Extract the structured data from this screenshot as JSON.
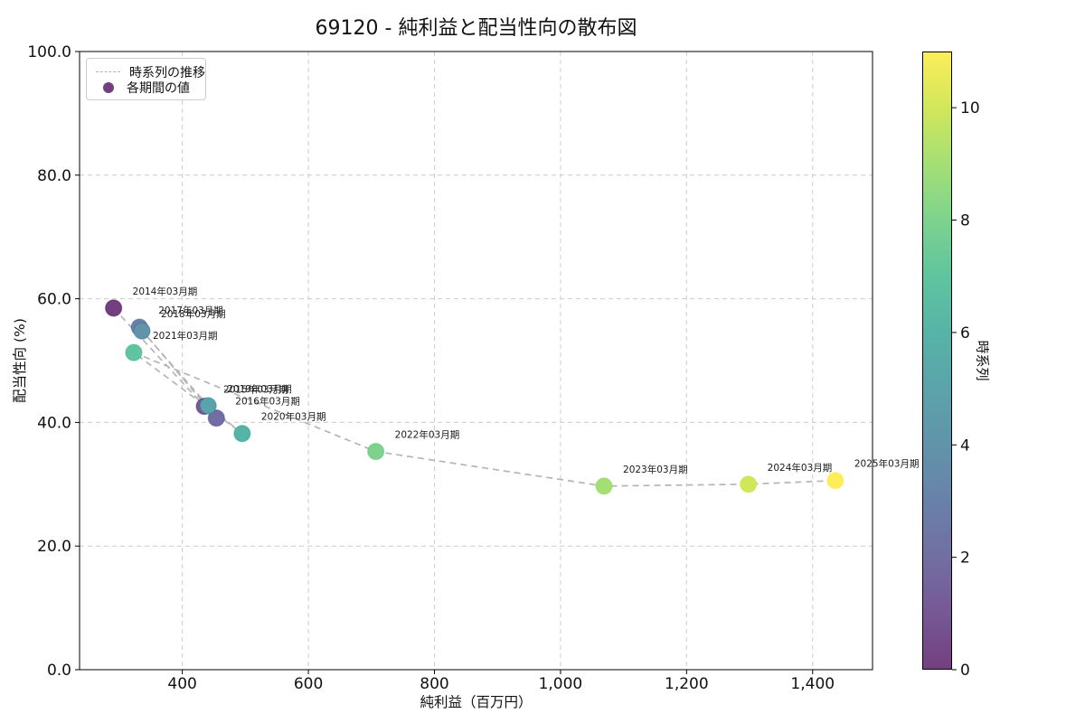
{
  "title": "69120 - 純利益と配当性向の散布図",
  "axes": {
    "xlabel": "純利益（百万円）",
    "ylabel": "配当性向 (%)",
    "x_tick_values": [
      400,
      600,
      800,
      1000,
      1200,
      1400
    ],
    "x_tick_labels": [
      "400",
      "600",
      "800",
      "1,000",
      "1,200",
      "1,400"
    ],
    "y_tick_values": [
      0,
      20,
      40,
      60,
      80,
      100
    ],
    "y_tick_labels": [
      "0.0",
      "20.0",
      "40.0",
      "60.0",
      "80.0",
      "100.0"
    ],
    "grid_color": "#cccccc",
    "spine_color": "#000000"
  },
  "legend": {
    "line_label": "時系列の推移",
    "marker_label": "各期間の値",
    "marker_color": "#73407f",
    "line_color": "#b3b3b3"
  },
  "colorbar": {
    "label": "時系列",
    "vmin": 0,
    "vmax": 11,
    "tick_values": [
      0,
      2,
      4,
      6,
      8,
      10
    ],
    "tick_labels": [
      "0",
      "2",
      "4",
      "6",
      "8",
      "10"
    ],
    "gradient_bottom_to_top": [
      "#73407f",
      "#765896",
      "#726ea3",
      "#6981a9",
      "#6194aa",
      "#5ba3aa",
      "#56b4a7",
      "#5fc49f",
      "#7dd38e",
      "#a4df76",
      "#d1e75a",
      "#fded5b"
    ]
  },
  "chart_data": {
    "type": "scatter",
    "title": "69120 - 純利益と配当性向の散布図",
    "xlabel": "純利益（百万円）",
    "ylabel": "配当性向 (%)",
    "xlim": [
      237,
      1495
    ],
    "ylim": [
      0,
      100
    ],
    "grid": true,
    "legend_position": "upper left",
    "line_style": "dashed",
    "line_color": "#b5b5b5",
    "marker_radius": 9,
    "points": [
      {
        "label": "2014年03月期",
        "t": 0,
        "x": 291,
        "y": 58.5,
        "fill": "#73407f",
        "edge": "#440154"
      },
      {
        "label": "2015年03月期",
        "t": 1,
        "x": 435,
        "y": 42.6,
        "fill": "#765896",
        "edge": "#482173"
      },
      {
        "label": "2016年03月期",
        "t": 2,
        "x": 454,
        "y": 40.7,
        "fill": "#726ea3",
        "edge": "#433e85"
      },
      {
        "label": "2017年03月期",
        "t": 3,
        "x": 332,
        "y": 55.4,
        "fill": "#6981a9",
        "edge": "#38578c"
      },
      {
        "label": "2018年03月期",
        "t": 4,
        "x": 336,
        "y": 54.8,
        "fill": "#6194aa",
        "edge": "#2d708e"
      },
      {
        "label": "2019年03月期",
        "t": 5,
        "x": 441,
        "y": 42.7,
        "fill": "#5ba3aa",
        "edge": "#25858e"
      },
      {
        "label": "2020年03月期",
        "t": 6,
        "x": 495,
        "y": 38.2,
        "fill": "#56b4a7",
        "edge": "#1e9b8a"
      },
      {
        "label": "2021年03月期",
        "t": 7,
        "x": 323,
        "y": 51.3,
        "fill": "#5fc49f",
        "edge": "#2ab07f"
      },
      {
        "label": "2022年03月期",
        "t": 8,
        "x": 707,
        "y": 35.3,
        "fill": "#7dd38e",
        "edge": "#52c569"
      },
      {
        "label": "2023年03月期",
        "t": 9,
        "x": 1069,
        "y": 29.7,
        "fill": "#a4df76",
        "edge": "#86d549"
      },
      {
        "label": "2024年03月期",
        "t": 10,
        "x": 1298,
        "y": 30.0,
        "fill": "#d1e75a",
        "edge": "#c2df23"
      },
      {
        "label": "2025年03月期",
        "t": 11,
        "x": 1436,
        "y": 30.6,
        "fill": "#fded5b",
        "edge": "#fde725"
      }
    ]
  }
}
